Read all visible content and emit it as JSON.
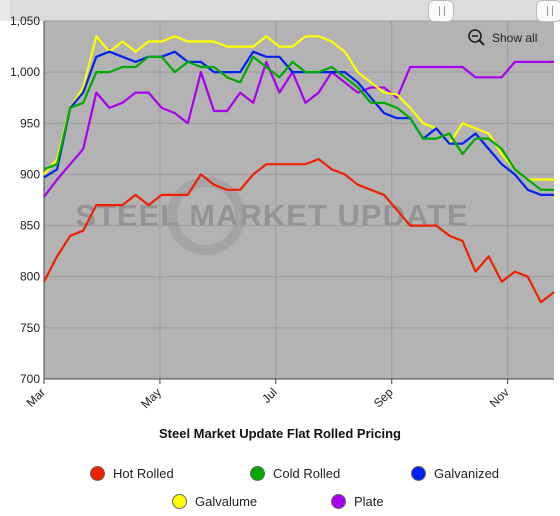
{
  "chart_data": {
    "type": "line",
    "title": "Steel Market Update Flat Rolled Pricing",
    "watermark": "STEEL MARKET UPDATE",
    "ylim": [
      700,
      1050
    ],
    "yticks": [
      700,
      750,
      800,
      850,
      900,
      950,
      "1,000",
      "1,050"
    ],
    "xticks": [
      "Mar",
      "May",
      "Jul",
      "Sep",
      "Nov"
    ],
    "grid": true,
    "legend_position": "bottom",
    "series": [
      {
        "name": "Hot Rolled",
        "color": "#ee2200",
        "values": [
          795,
          820,
          840,
          845,
          870,
          870,
          870,
          880,
          870,
          880,
          880,
          880,
          900,
          890,
          885,
          885,
          900,
          910,
          910,
          910,
          910,
          915,
          905,
          900,
          890,
          885,
          880,
          865,
          850,
          850,
          850,
          840,
          835,
          805,
          820,
          795,
          805,
          800,
          775,
          785
        ]
      },
      {
        "name": "Cold Rolled",
        "color": "#00aa00",
        "values": [
          905,
          910,
          965,
          970,
          1000,
          1000,
          1005,
          1005,
          1015,
          1015,
          1000,
          1010,
          1005,
          1005,
          995,
          990,
          1015,
          1005,
          995,
          1010,
          1000,
          1000,
          1005,
          995,
          985,
          970,
          970,
          965,
          955,
          935,
          935,
          940,
          920,
          935,
          935,
          925,
          905,
          895,
          885,
          885
        ]
      },
      {
        "name": "Galvanized",
        "color": "#0022ee",
        "values": [
          897,
          905,
          965,
          980,
          1015,
          1020,
          1015,
          1010,
          1015,
          1015,
          1020,
          1010,
          1010,
          1000,
          1000,
          1000,
          1020,
          1015,
          1015,
          1000,
          1000,
          1000,
          1000,
          1000,
          990,
          975,
          960,
          955,
          955,
          935,
          945,
          930,
          930,
          940,
          925,
          910,
          900,
          885,
          880,
          880
        ]
      },
      {
        "name": "Galvalume",
        "color": "#ffff00",
        "values": [
          900,
          915,
          965,
          985,
          1035,
          1020,
          1030,
          1020,
          1030,
          1030,
          1035,
          1030,
          1030,
          1030,
          1025,
          1025,
          1025,
          1035,
          1025,
          1025,
          1035,
          1035,
          1030,
          1020,
          1000,
          990,
          980,
          978,
          965,
          950,
          945,
          930,
          950,
          945,
          940,
          920,
          905,
          895,
          895,
          895
        ]
      },
      {
        "name": "Plate",
        "color": "#aa00ee",
        "values": [
          878,
          895,
          910,
          925,
          980,
          965,
          970,
          980,
          980,
          965,
          960,
          950,
          1000,
          962,
          962,
          980,
          970,
          1010,
          980,
          1000,
          970,
          980,
          1000,
          990,
          980,
          985,
          985,
          975,
          1005,
          1005,
          1005,
          1005,
          1005,
          995,
          995,
          995,
          1010,
          1010,
          1010,
          1010
        ]
      }
    ]
  },
  "controls": {
    "show_all_label": "Show all",
    "zoom_icon": "zoom-out-icon"
  }
}
